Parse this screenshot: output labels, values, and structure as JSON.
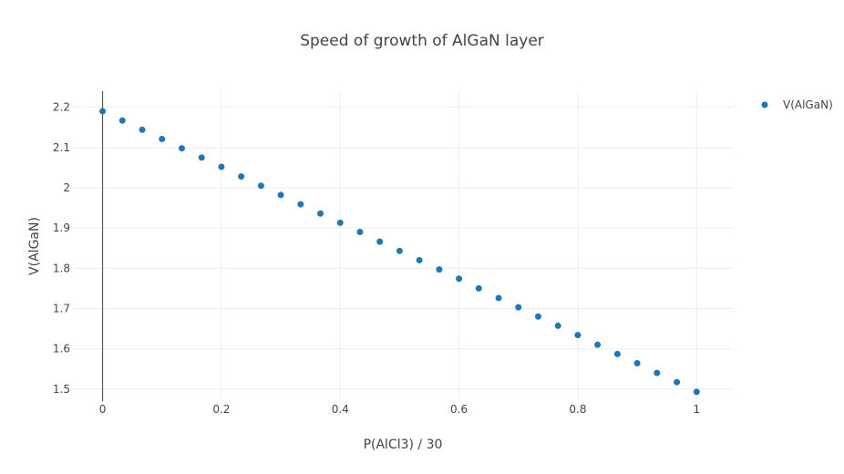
{
  "chart_data": {
    "type": "scatter",
    "title": "Speed of growth of AlGaN layer",
    "xlabel": "P(AlCl3) / 30",
    "ylabel": "V(AlGaN)",
    "xlim": [
      -0.05,
      1.0625
    ],
    "ylim": [
      1.47,
      2.24
    ],
    "x_ticks": [
      0,
      0.2,
      0.4,
      0.6,
      0.8,
      1
    ],
    "x_tick_labels": [
      "0",
      "0.2",
      "0.4",
      "0.6",
      "0.8",
      "1"
    ],
    "y_ticks": [
      1.5,
      1.6,
      1.7,
      1.8,
      1.9,
      2,
      2.1,
      2.2
    ],
    "y_tick_labels": [
      "1.5",
      "1.6",
      "1.7",
      "1.8",
      "1.9",
      "2",
      "2.1",
      "2.2"
    ],
    "grid": true,
    "legend_position": "top-right",
    "series": [
      {
        "name": "V(AlGaN)",
        "color": "#1f77b4",
        "x": [
          0,
          0.0333,
          0.0667,
          0.1,
          0.1333,
          0.1667,
          0.2,
          0.2333,
          0.2667,
          0.3,
          0.3333,
          0.3667,
          0.4,
          0.4333,
          0.4667,
          0.5,
          0.5333,
          0.5667,
          0.6,
          0.6333,
          0.6667,
          0.7,
          0.7333,
          0.7667,
          0.8,
          0.8333,
          0.8667,
          0.9,
          0.9333,
          0.9667,
          1
        ],
        "y": [
          2.19,
          2.167,
          2.144,
          2.121,
          2.098,
          2.075,
          2.052,
          2.028,
          2.005,
          1.982,
          1.959,
          1.936,
          1.913,
          1.89,
          1.866,
          1.843,
          1.82,
          1.797,
          1.774,
          1.75,
          1.726,
          1.703,
          1.68,
          1.657,
          1.634,
          1.61,
          1.587,
          1.564,
          1.54,
          1.517,
          1.493
        ]
      }
    ]
  }
}
